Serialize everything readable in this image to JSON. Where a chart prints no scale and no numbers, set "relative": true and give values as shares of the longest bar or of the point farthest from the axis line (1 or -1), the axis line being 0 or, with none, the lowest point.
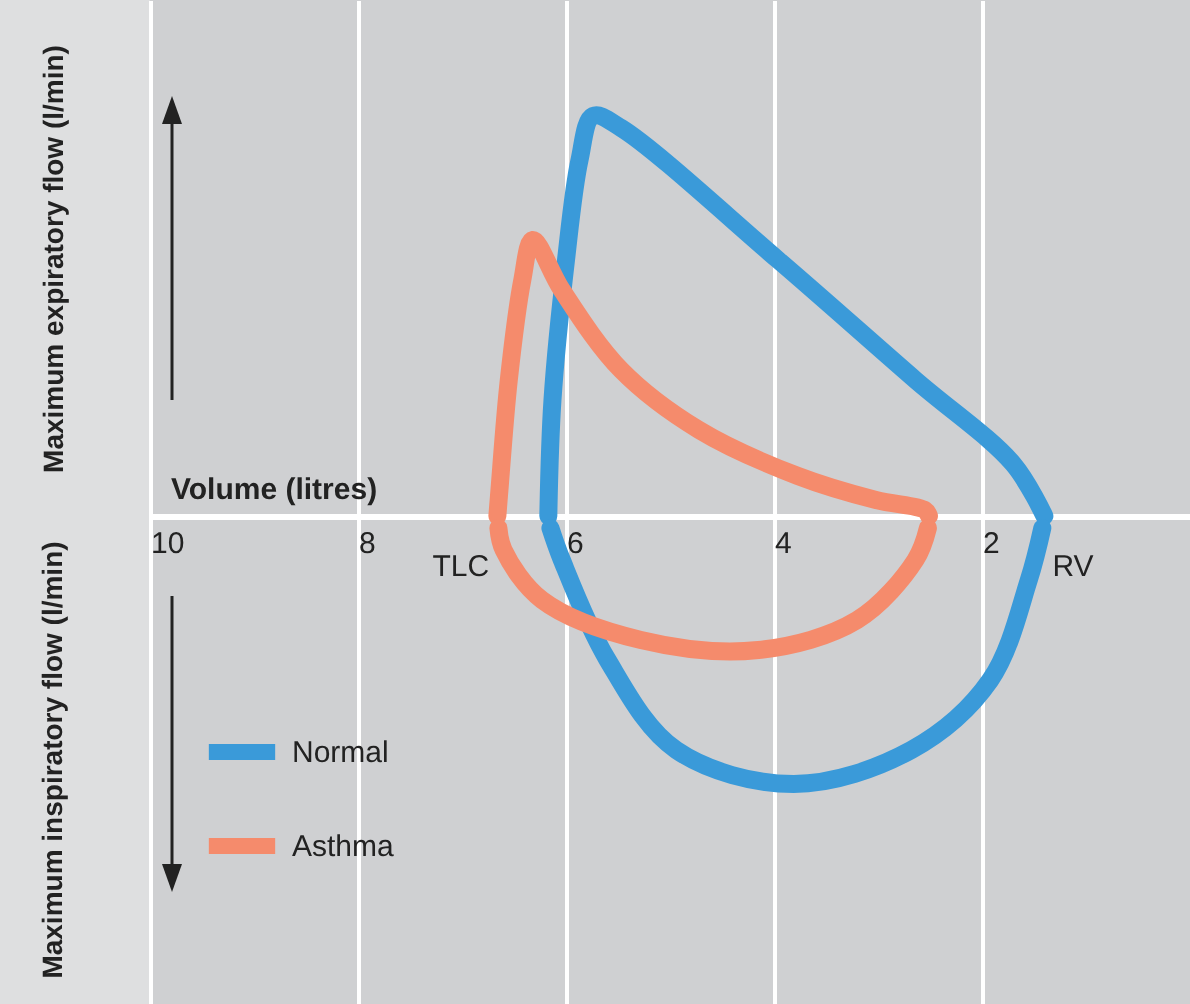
{
  "chart_data": {
    "type": "line",
    "relative": true,
    "xlabel": "Volume (litres)",
    "ylabel": "Maximum expiratory flow (l/min)",
    "xlim": [
      10,
      0
    ],
    "xticks": [
      10,
      8,
      6,
      4,
      2
    ],
    "grid": "x",
    "legend": "bottom left",
    "line_style": "solid",
    "marker": "none",
    "annotations": [
      "Maximum inspiratory flow (l/min)",
      {
        "text": "TLC",
        "x": 6.7,
        "y": 0
      },
      {
        "text": "RV",
        "x": 1.4,
        "y": 0
      }
    ],
    "series": [
      {
        "name": "Normal",
        "color": "#3a9ad9",
        "x": [
          6.17,
          6.13,
          6.0,
          5.87,
          5.74,
          5.47,
          3.96,
          2.64,
          1.7,
          1.4
        ],
        "values": [
          0,
          0.29,
          0.64,
          0.89,
          1.0,
          0.97,
          0.64,
          0.34,
          0.13,
          0
        ]
      },
      {
        "color": "#3a9ad9",
        "x": [
          1.42,
          1.55,
          1.92,
          2.68,
          3.81,
          4.94,
          5.6,
          6.04,
          6.15
        ],
        "values": [
          -0.03,
          -0.16,
          -0.41,
          -0.585,
          -0.67,
          -0.585,
          -0.36,
          -0.11,
          -0.03
        ]
      },
      {
        "name": "Asthma",
        "color": "#f58b6c",
        "x": [
          6.66,
          6.64,
          6.55,
          6.42,
          6.32,
          6.04,
          5.47,
          4.72,
          3.77,
          3.02,
          2.55,
          2.51
        ],
        "values": [
          0,
          0.065,
          0.34,
          0.59,
          0.69,
          0.565,
          0.365,
          0.215,
          0.1,
          0.04,
          0.015,
          0
        ]
      },
      {
        "color": "#f58b6c",
        "x": [
          2.52,
          2.64,
          3.2,
          4.15,
          5.28,
          6.23,
          6.6,
          6.65
        ],
        "values": [
          -0.03,
          -0.11,
          -0.26,
          -0.335,
          -0.31,
          -0.21,
          -0.085,
          -0.03
        ]
      }
    ]
  }
}
